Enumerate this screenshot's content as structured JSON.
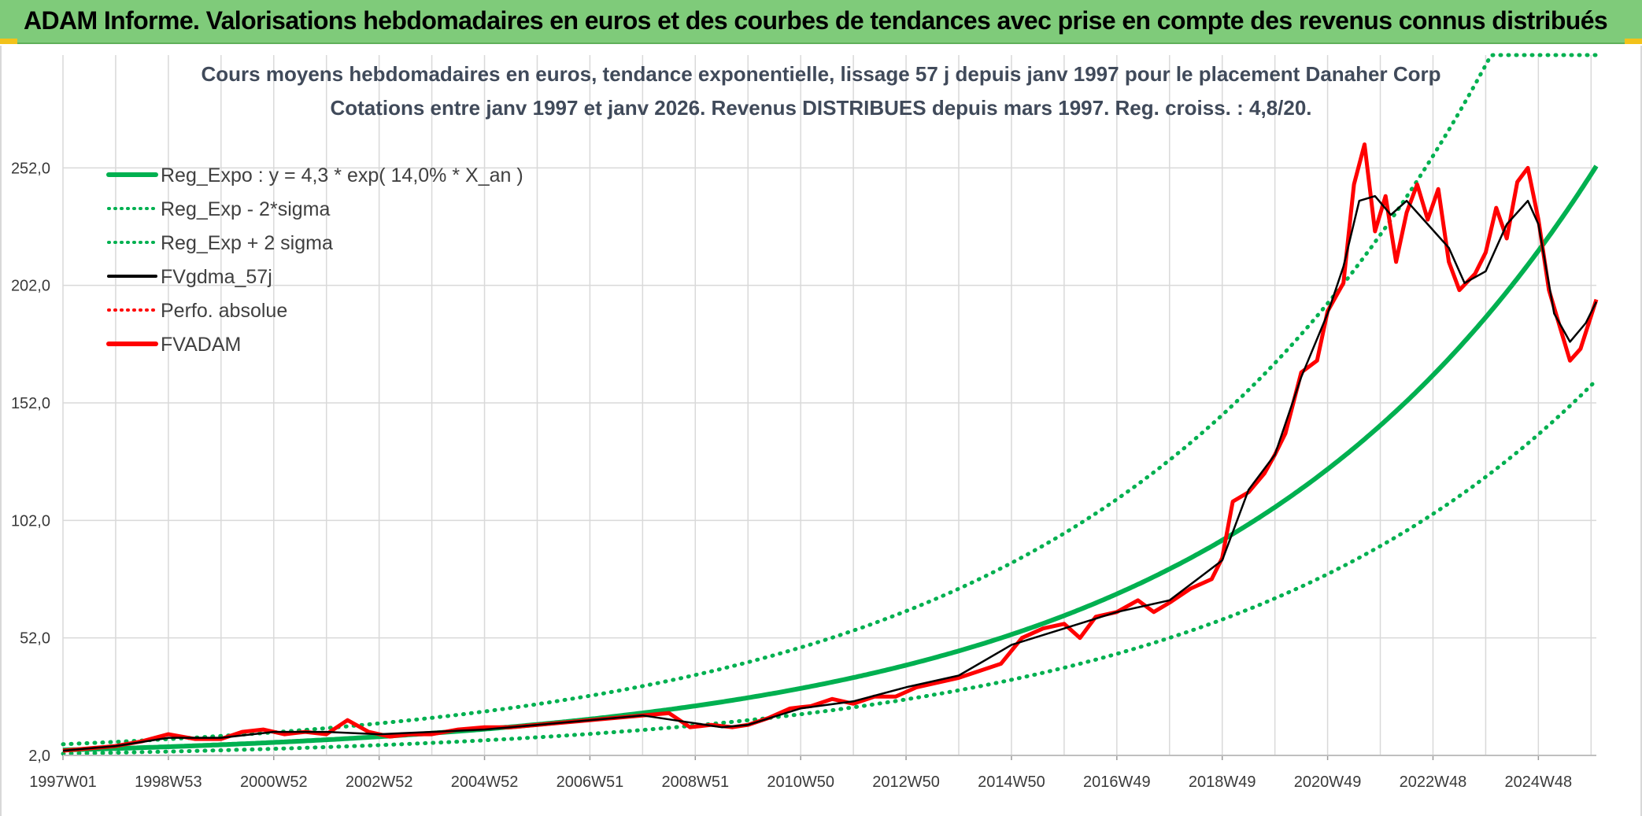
{
  "header": {
    "title": "ADAM Informe. Valorisations hebdomadaires en euros et des courbes de tendances avec prise en compte des revenus connus distribués"
  },
  "colors": {
    "header_bg": "#7fcb7a",
    "reg_green": "#00b050",
    "fv57_black": "#000000",
    "adam_red": "#ff0000",
    "grid": "#d9d9d9"
  },
  "chart_data": {
    "type": "line",
    "title": "Cours moyens hebdomadaires en euros, tendance exponentielle, lissage 57 j depuis janv 1997 pour le placement Danaher Corp",
    "subtitle": "Cotations entre janv 1997 et janv 2026. Revenus DISTRIBUES depuis mars 1997. Reg. croiss. : 4,8/20.",
    "xlabel": "",
    "ylabel": "",
    "ylim": [
      2,
      300
    ],
    "y_ticks": [
      "2,0",
      "52,0",
      "102,0",
      "152,0",
      "202,0",
      "252,0"
    ],
    "y_tick_values": [
      2,
      52,
      102,
      152,
      202,
      252
    ],
    "x_ticks": [
      "1997W01",
      "1998W53",
      "2000W52",
      "2002W52",
      "2004W52",
      "2006W51",
      "2008W51",
      "2010W50",
      "2012W50",
      "2014W50",
      "2016W49",
      "2018W49",
      "2020W49",
      "2022W48",
      "2024W48"
    ],
    "x_tick_years": [
      1997.0,
      1999.0,
      2001.0,
      2003.0,
      2005.0,
      2007.0,
      2009.0,
      2011.0,
      2013.0,
      2015.0,
      2017.0,
      2019.0,
      2021.0,
      2023.0,
      2025.0
    ],
    "xlim": [
      1997.0,
      2026.1
    ],
    "legend": [
      {
        "name": "Reg_Expo : y = 4,3 * exp( 14,0% *  X_an )",
        "color": "#00b050",
        "style": "solid-thick"
      },
      {
        "name": "Reg_Exp - 2*sigma",
        "color": "#00b050",
        "style": "dotted"
      },
      {
        "name": "Reg_Exp + 2 sigma",
        "color": "#00b050",
        "style": "dotted"
      },
      {
        "name": "FVgdma_57j",
        "color": "#000000",
        "style": "solid"
      },
      {
        "name": "Perfo. absolue",
        "color": "#ff0000",
        "style": "dotted"
      },
      {
        "name": "FVADAM",
        "color": "#ff0000",
        "style": "solid-thick"
      }
    ],
    "series": [
      {
        "name": "Reg_Expo",
        "model": "exp",
        "a": 4.3,
        "rate": 0.14,
        "x0": 1997.0,
        "year_end": 2026.1
      },
      {
        "name": "Reg_Exp - 2*sigma",
        "model": "exp",
        "a": 2.75,
        "rate": 0.14,
        "x0": 1997.0,
        "year_end": 2026.1
      },
      {
        "name": "Reg_Exp + 2 sigma",
        "model": "exp",
        "a": 6.75,
        "rate": 0.14,
        "x0": 1997.0,
        "year_end": 2026.1,
        "cap": 300
      },
      {
        "name": "FVADAM",
        "x": [
          1997.0,
          1997.5,
          1998.0,
          1998.5,
          1999.0,
          1999.5,
          2000.0,
          2000.4,
          2000.8,
          2001.2,
          2001.6,
          2002.0,
          2002.4,
          2002.8,
          2003.2,
          2003.6,
          2004.0,
          2004.5,
          2005.0,
          2005.5,
          2006.0,
          2006.5,
          2007.0,
          2007.5,
          2008.0,
          2008.5,
          2008.9,
          2009.3,
          2009.7,
          2010.0,
          2010.4,
          2010.8,
          2011.2,
          2011.6,
          2012.0,
          2012.4,
          2012.8,
          2013.2,
          2013.6,
          2014.0,
          2014.4,
          2014.8,
          2015.2,
          2015.6,
          2016.0,
          2016.3,
          2016.6,
          2017.0,
          2017.4,
          2017.7,
          2018.0,
          2018.4,
          2018.8,
          2019.0,
          2019.2,
          2019.5,
          2019.8,
          2020.0,
          2020.2,
          2020.5,
          2020.8,
          2021.0,
          2021.3,
          2021.5,
          2021.7,
          2021.9,
          2022.1,
          2022.3,
          2022.5,
          2022.7,
          2022.9,
          2023.1,
          2023.3,
          2023.5,
          2023.8,
          2024.0,
          2024.2,
          2024.4,
          2024.6,
          2024.8,
          2025.0,
          2025.2,
          2025.4,
          2025.6,
          2025.8,
          2026.1
        ],
        "y": [
          4,
          5,
          6,
          8,
          11,
          9,
          9,
          12,
          13,
          11,
          12,
          11,
          17,
          12,
          10,
          11,
          11,
          13,
          14,
          14,
          15,
          16,
          17,
          18,
          19,
          20,
          14,
          15,
          14,
          15,
          18,
          22,
          23,
          26,
          24,
          27,
          27,
          31,
          33,
          35,
          38,
          41,
          52,
          56,
          58,
          52,
          61,
          63,
          68,
          63,
          67,
          73,
          77,
          86,
          110,
          114,
          122,
          130,
          139,
          165,
          170,
          191,
          203,
          245,
          262,
          225,
          240,
          212,
          233,
          245,
          230,
          243,
          212,
          200,
          207,
          216,
          235,
          222,
          246,
          252,
          230,
          200,
          185,
          170,
          175,
          196
        ]
      },
      {
        "name": "FVgdma_57j",
        "x": [
          1997.0,
          1998.0,
          1999.0,
          2000.0,
          2001.0,
          2002.0,
          2003.0,
          2004.0,
          2005.0,
          2006.0,
          2007.0,
          2008.0,
          2008.9,
          2009.5,
          2010.0,
          2011.0,
          2012.0,
          2013.0,
          2014.0,
          2015.0,
          2016.0,
          2017.0,
          2018.0,
          2019.0,
          2019.5,
          2020.0,
          2020.5,
          2021.0,
          2021.3,
          2021.6,
          2021.9,
          2022.2,
          2022.5,
          2022.9,
          2023.3,
          2023.6,
          2024.0,
          2024.4,
          2024.8,
          2025.0,
          2025.3,
          2025.6,
          2025.9,
          2026.1
        ],
        "y": [
          4,
          6,
          9.5,
          9.5,
          12,
          12,
          11,
          12,
          13,
          15,
          17,
          19,
          16,
          14,
          15,
          22,
          25,
          31,
          36,
          49,
          56,
          63,
          68,
          85,
          115,
          130,
          163,
          190,
          210,
          238,
          240,
          232,
          238,
          228,
          218,
          203,
          208,
          228,
          238,
          228,
          190,
          178,
          186,
          195
        ]
      }
    ]
  }
}
